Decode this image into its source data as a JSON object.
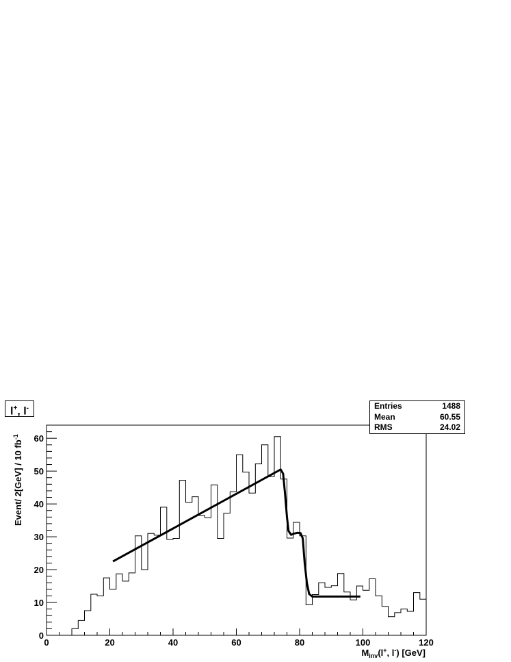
{
  "chart_data": {
    "type": "histogram",
    "title": "l+, l-",
    "title_parts": {
      "a": "l",
      "a_sup": "+",
      "sep": ", ",
      "b": "l",
      "b_sup": "-"
    },
    "xlabel": {
      "base": "M",
      "sub": "inv",
      "mid": "(l",
      "sup1": "+",
      "mid2": ", l",
      "sup2": "-",
      "tail": ") [GeV]"
    },
    "ylabel": {
      "base": "Event/ 2[GeV] / 10 fb",
      "sup": "-1"
    },
    "xlim": [
      0,
      120
    ],
    "ylim": [
      0,
      64
    ],
    "x_ticks": [
      "0",
      "20",
      "40",
      "60",
      "80",
      "100",
      "120"
    ],
    "y_ticks": [
      "0",
      "10",
      "20",
      "30",
      "40",
      "50",
      "60"
    ],
    "bin_width": 2,
    "bin_edges_start": 0,
    "values": [
      0,
      0,
      0,
      0,
      2,
      4.5,
      7.5,
      12.5,
      12,
      17.5,
      14,
      18.7,
      16.5,
      19,
      30.3,
      20,
      31,
      30.5,
      39,
      29.2,
      29.5,
      47.2,
      40.5,
      42.2,
      36.5,
      35.8,
      45.8,
      29.5,
      37.2,
      43.7,
      55,
      49.7,
      43.3,
      52.2,
      58,
      48.3,
      60.5,
      47.6,
      29.6,
      34.4,
      30.3,
      9.3,
      12.4,
      16,
      14.6,
      15.1,
      18.8,
      13.2,
      10.8,
      15,
      13.7,
      17.2,
      12,
      8.8,
      5.7,
      6.9,
      8,
      7.3,
      13,
      11
    ],
    "fit_curve": [
      [
        21,
        22.5
      ],
      [
        74,
        50.5
      ],
      [
        74.8,
        49.2
      ],
      [
        75.4,
        43
      ],
      [
        76,
        36
      ],
      [
        76.5,
        31.8
      ],
      [
        77.3,
        30.6
      ],
      [
        78.3,
        31
      ],
      [
        79.3,
        31.2
      ],
      [
        80.3,
        31.1
      ],
      [
        81,
        29.5
      ],
      [
        81.6,
        22
      ],
      [
        82.3,
        16
      ],
      [
        83,
        12.6
      ],
      [
        84,
        11.8
      ],
      [
        99.2,
        11.8
      ]
    ],
    "stats": [
      {
        "label": "Entries",
        "value": "1488"
      },
      {
        "label": "Mean",
        "value": "60.55"
      },
      {
        "label": "RMS",
        "value": "24.02"
      }
    ],
    "grid": false
  }
}
